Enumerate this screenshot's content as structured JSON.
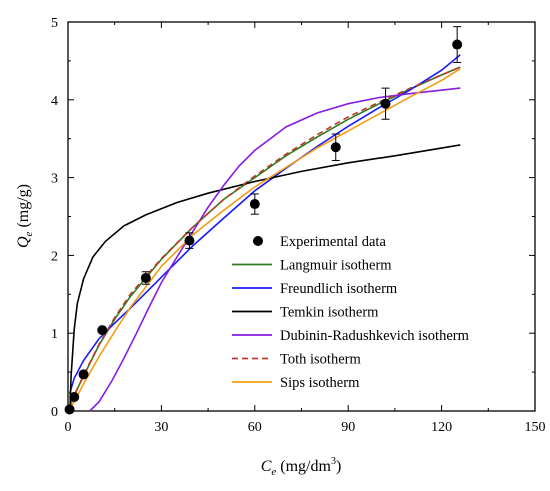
{
  "chart_data": {
    "type": "scatter",
    "xlabel": {
      "main": "C",
      "sub": "e",
      "unit_pre": " (mg/dm",
      "unit_sup": "3",
      "unit_post": ")"
    },
    "ylabel": {
      "main": "Q",
      "sub": "e",
      "unit": " (mg/g)"
    },
    "xlim": [
      0,
      150
    ],
    "ylim": [
      0,
      5
    ],
    "xticks": [
      0,
      30,
      60,
      90,
      120,
      150
    ],
    "yticks": [
      0,
      1,
      2,
      3,
      4,
      5
    ],
    "grid": false,
    "legend_position": "lower-right",
    "experimental": {
      "name": "Experimental data",
      "color": "#000000",
      "x": [
        0.5,
        2,
        5,
        11,
        25,
        39,
        60,
        86,
        102,
        125
      ],
      "y": [
        0.02,
        0.18,
        0.47,
        1.04,
        1.71,
        2.19,
        2.66,
        3.39,
        3.95,
        4.71
      ],
      "err": [
        0,
        0,
        0,
        0,
        0.08,
        0.1,
        0.13,
        0.17,
        0.2,
        0.23
      ]
    },
    "series": [
      {
        "name": "Langmuir isotherm",
        "color": "#2e7d1e",
        "dash": "",
        "x": [
          0,
          2,
          5,
          10,
          15,
          20,
          30,
          40,
          50,
          60,
          70,
          80,
          90,
          100,
          110,
          120,
          126
        ],
        "y": [
          0,
          0.2,
          0.45,
          0.85,
          1.18,
          1.47,
          1.95,
          2.36,
          2.72,
          3.0,
          3.28,
          3.52,
          3.75,
          3.95,
          4.14,
          4.32,
          4.42
        ]
      },
      {
        "name": "Freundlich isotherm",
        "color": "#1a1aff",
        "dash": "",
        "x": [
          0.5,
          2,
          5,
          10,
          15,
          20,
          30,
          40,
          50,
          60,
          70,
          80,
          90,
          100,
          110,
          120,
          126
        ],
        "y": [
          0.22,
          0.42,
          0.65,
          0.93,
          1.13,
          1.32,
          1.72,
          2.12,
          2.48,
          2.83,
          3.12,
          3.4,
          3.66,
          3.9,
          4.13,
          4.38,
          4.58
        ]
      },
      {
        "name": "Temkin isotherm",
        "color": "#000000",
        "dash": "",
        "x": [
          0.6,
          1,
          2,
          3,
          5,
          8,
          12,
          18,
          25,
          35,
          45,
          60,
          75,
          90,
          105,
          126
        ],
        "y": [
          0,
          0.45,
          1.05,
          1.38,
          1.7,
          1.98,
          2.18,
          2.38,
          2.52,
          2.68,
          2.8,
          2.95,
          3.08,
          3.19,
          3.28,
          3.42
        ]
      },
      {
        "name": "Dubinin-Radushkevich isotherm",
        "color": "#8a1be0",
        "dash": "",
        "x": [
          7,
          10,
          14,
          18,
          22,
          26,
          30,
          35,
          40,
          45,
          50,
          55,
          60,
          70,
          80,
          90,
          100,
          110,
          126
        ],
        "y": [
          0,
          0.12,
          0.38,
          0.68,
          1.0,
          1.33,
          1.65,
          1.98,
          2.3,
          2.62,
          2.9,
          3.15,
          3.35,
          3.65,
          3.83,
          3.95,
          4.03,
          4.08,
          4.15
        ]
      },
      {
        "name": "Toth isotherm",
        "color": "#c0392b",
        "dash": "6,4",
        "x": [
          0,
          2,
          5,
          10,
          15,
          20,
          30,
          40,
          50,
          60,
          70,
          80,
          90,
          100,
          110,
          120,
          126
        ],
        "y": [
          0,
          0.2,
          0.46,
          0.86,
          1.2,
          1.5,
          1.96,
          2.36,
          2.72,
          3.02,
          3.3,
          3.55,
          3.78,
          3.97,
          4.15,
          4.32,
          4.42
        ]
      },
      {
        "name": "Sips isotherm",
        "color": "#f39c12",
        "dash": "",
        "x": [
          0,
          2,
          5,
          10,
          15,
          20,
          30,
          40,
          50,
          60,
          70,
          80,
          90,
          100,
          110,
          120,
          126
        ],
        "y": [
          0,
          0.12,
          0.35,
          0.7,
          1.02,
          1.33,
          1.86,
          2.26,
          2.58,
          2.88,
          3.13,
          3.38,
          3.6,
          3.82,
          4.04,
          4.25,
          4.4
        ]
      }
    ]
  }
}
